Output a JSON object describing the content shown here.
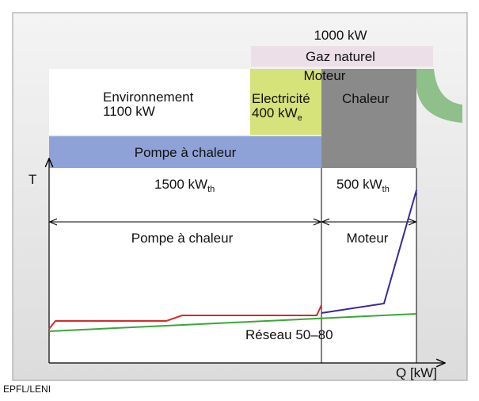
{
  "header": {
    "power": "1000 kW",
    "fuel": "Gaz naturel",
    "engine": "Moteur"
  },
  "boxes": {
    "environment": {
      "label": "Environnement",
      "value": "1100 kW"
    },
    "electricity": {
      "label": "Electricité",
      "value": "400 kW",
      "sub": "e"
    },
    "heat": {
      "label": "Chaleur"
    },
    "heat_pump": {
      "label": "Pompe à chaleur"
    }
  },
  "axes": {
    "y": "T",
    "x": "Q [kW]"
  },
  "sections": [
    {
      "value": "1500 kW",
      "sub": "th",
      "label": "Pompe à chaleur"
    },
    {
      "value": "500 kW",
      "sub": "th",
      "label": "Moteur"
    }
  ],
  "network": "Réseau 50–80",
  "credit": "EPFL/LENI"
}
